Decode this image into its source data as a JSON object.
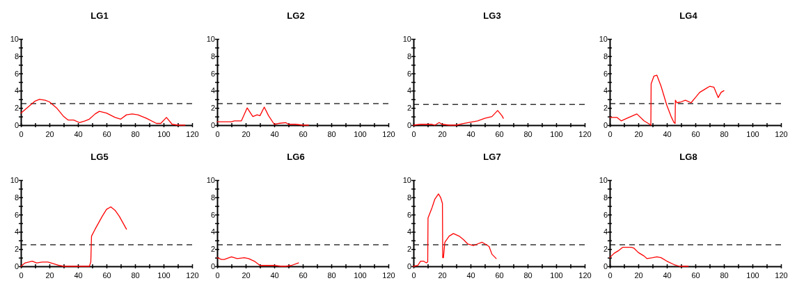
{
  "chart_data": [
    {
      "type": "line",
      "title": "LG1",
      "x": [
        0,
        5,
        10,
        13,
        17,
        20,
        25,
        30,
        33,
        37,
        41,
        45,
        48,
        52,
        55,
        60,
        66,
        70,
        74,
        78,
        82,
        88,
        95,
        98,
        102,
        106,
        110,
        115
      ],
      "series": [
        {
          "color": "#ff0000",
          "values": [
            1.4,
            2.1,
            2.8,
            3.0,
            2.9,
            2.7,
            2.0,
            1.0,
            0.6,
            0.6,
            0.3,
            0.5,
            0.7,
            1.3,
            1.6,
            1.4,
            0.9,
            0.7,
            1.2,
            1.3,
            1.2,
            0.8,
            0.2,
            0.2,
            0.9,
            0.1,
            0,
            0
          ]
        }
      ],
      "xlim": [
        0,
        120
      ],
      "ylim": [
        0,
        10
      ],
      "xticks": [
        0,
        {
          "value": 10,
          "label": null
        },
        20,
        {
          "value": 30,
          "label": null
        },
        40,
        {
          "value": 50,
          "label": null
        },
        60,
        {
          "value": 70,
          "label": null
        },
        80,
        {
          "value": 90,
          "label": null
        },
        100,
        {
          "value": 110,
          "label": null
        },
        120
      ],
      "yticks": [
        0,
        {
          "value": 1,
          "label": null
        },
        2,
        {
          "value": 3,
          "label": null
        },
        4,
        {
          "value": 5,
          "label": null
        },
        6,
        {
          "value": 7,
          "label": null
        },
        8,
        {
          "value": 9,
          "label": null
        },
        10
      ],
      "ref_lines": [
        {
          "axis": "y",
          "value": 2.5,
          "line_style": "dashed",
          "color": "#333333"
        }
      ],
      "marker": "none",
      "line_style": "solid",
      "grid": false
    },
    {
      "type": "line",
      "title": "LG2",
      "x": [
        0,
        10,
        12,
        17,
        21,
        25,
        28,
        30,
        33,
        36,
        40,
        43,
        48,
        50,
        55,
        60,
        64
      ],
      "series": [
        {
          "color": "#ff0000",
          "values": [
            0.4,
            0.4,
            0.5,
            0.5,
            2.0,
            1.0,
            1.2,
            1.1,
            2.1,
            1.1,
            0.1,
            0.2,
            0.3,
            0.1,
            0.1,
            0,
            0
          ]
        }
      ],
      "xlim": [
        0,
        120
      ],
      "ylim": [
        0,
        10
      ],
      "xticks": [
        0,
        {
          "value": 10,
          "label": null
        },
        20,
        {
          "value": 30,
          "label": null
        },
        40,
        {
          "value": 50,
          "label": null
        },
        60,
        {
          "value": 70,
          "label": null
        },
        80,
        {
          "value": 90,
          "label": null
        },
        100,
        {
          "value": 110,
          "label": null
        },
        120
      ],
      "yticks": [
        0,
        {
          "value": 1,
          "label": null
        },
        2,
        {
          "value": 3,
          "label": null
        },
        4,
        {
          "value": 5,
          "label": null
        },
        6,
        {
          "value": 7,
          "label": null
        },
        8,
        {
          "value": 9,
          "label": null
        },
        10
      ],
      "ref_lines": [
        {
          "axis": "y",
          "value": 2.5,
          "line_style": "dashed",
          "color": "#333333"
        }
      ],
      "marker": "none",
      "line_style": "solid",
      "grid": false
    },
    {
      "type": "line",
      "title": "LG3",
      "x": [
        0,
        5,
        13,
        15,
        18,
        20,
        25,
        30,
        35,
        45,
        50,
        55,
        59,
        62,
        63
      ],
      "series": [
        {
          "color": "#ff0000",
          "values": [
            0,
            0.1,
            0.1,
            0,
            0.3,
            0.1,
            0,
            0,
            0.2,
            0.5,
            0.8,
            1.0,
            1.7,
            1.1,
            0.8
          ]
        }
      ],
      "xlim": [
        0,
        120
      ],
      "ylim": [
        0,
        10
      ],
      "xticks": [
        0,
        {
          "value": 10,
          "label": null
        },
        20,
        {
          "value": 30,
          "label": null
        },
        40,
        {
          "value": 50,
          "label": null
        },
        60,
        {
          "value": 70,
          "label": null
        },
        80,
        {
          "value": 90,
          "label": null
        },
        100,
        {
          "value": 110,
          "label": null
        },
        120
      ],
      "yticks": [
        0,
        {
          "value": 1,
          "label": null
        },
        2,
        {
          "value": 3,
          "label": null
        },
        4,
        {
          "value": 5,
          "label": null
        },
        6,
        {
          "value": 7,
          "label": null
        },
        8,
        {
          "value": 9,
          "label": null
        },
        10
      ],
      "ref_lines": [
        {
          "axis": "y",
          "value": 2.4,
          "line_style": "dashed",
          "color": "#333333"
        }
      ],
      "marker": "none",
      "line_style": "solid",
      "grid": false
    },
    {
      "type": "line",
      "title": "LG4",
      "x": [
        0,
        5,
        8,
        12,
        19,
        24,
        28,
        28.8,
        29,
        31,
        33,
        36,
        40,
        43,
        45,
        45.8,
        46,
        47,
        50,
        53,
        57,
        60,
        63,
        67,
        70,
        73,
        76,
        78,
        80
      ],
      "series": [
        {
          "color": "#ff0000",
          "values": [
            0.9,
            0.9,
            0.5,
            0.8,
            1.3,
            0.5,
            0.1,
            0,
            4.8,
            5.7,
            5.8,
            4.5,
            2.3,
            1.0,
            0.3,
            0.2,
            2.9,
            2.6,
            2.7,
            2.9,
            2.6,
            3.2,
            3.8,
            4.2,
            4.5,
            4.4,
            3.2,
            3.8,
            4.0
          ]
        }
      ],
      "xlim": [
        0,
        120
      ],
      "ylim": [
        0,
        10
      ],
      "xticks": [
        0,
        {
          "value": 10,
          "label": null
        },
        20,
        {
          "value": 30,
          "label": null
        },
        40,
        {
          "value": 50,
          "label": null
        },
        60,
        {
          "value": 70,
          "label": null
        },
        80,
        {
          "value": 90,
          "label": null
        },
        100,
        {
          "value": 110,
          "label": null
        },
        120
      ],
      "yticks": [
        0,
        {
          "value": 1,
          "label": null
        },
        2,
        {
          "value": 3,
          "label": null
        },
        4,
        {
          "value": 5,
          "label": null
        },
        6,
        {
          "value": 7,
          "label": null
        },
        8,
        {
          "value": 9,
          "label": null
        },
        10
      ],
      "ref_lines": [
        {
          "axis": "y",
          "value": 2.5,
          "line_style": "dashed",
          "color": "#333333"
        }
      ],
      "marker": "none",
      "line_style": "solid",
      "grid": false
    },
    {
      "type": "line",
      "title": "LG5",
      "x": [
        0,
        3,
        8,
        11,
        15,
        19,
        23,
        27,
        30,
        48,
        49,
        49.5,
        52,
        57,
        60,
        63,
        66,
        69,
        74
      ],
      "series": [
        {
          "color": "#ff0000",
          "values": [
            0,
            0.4,
            0.6,
            0.4,
            0.5,
            0.5,
            0.3,
            0.1,
            0,
            0,
            0.5,
            3.5,
            4.3,
            5.8,
            6.6,
            6.9,
            6.5,
            5.8,
            4.3
          ]
        }
      ],
      "xlim": [
        0,
        120
      ],
      "ylim": [
        0,
        10
      ],
      "xticks": [
        0,
        {
          "value": 10,
          "label": null
        },
        20,
        {
          "value": 30,
          "label": null
        },
        40,
        {
          "value": 50,
          "label": null
        },
        60,
        {
          "value": 70,
          "label": null
        },
        80,
        {
          "value": 90,
          "label": null
        },
        100,
        {
          "value": 110,
          "label": null
        },
        120
      ],
      "yticks": [
        0,
        {
          "value": 1,
          "label": null
        },
        2,
        {
          "value": 3,
          "label": null
        },
        4,
        {
          "value": 5,
          "label": null
        },
        6,
        {
          "value": 7,
          "label": null
        },
        8,
        {
          "value": 9,
          "label": null
        },
        10
      ],
      "ref_lines": [
        {
          "axis": "y",
          "value": 2.5,
          "line_style": "dashed",
          "color": "#333333"
        }
      ],
      "marker": "none",
      "line_style": "solid",
      "grid": false
    },
    {
      "type": "line",
      "title": "LG6",
      "x": [
        0,
        3,
        5,
        10,
        14,
        19,
        22,
        26,
        30,
        35,
        40,
        45,
        48,
        52,
        57
      ],
      "series": [
        {
          "color": "#ff0000",
          "values": [
            1.0,
            0.8,
            0.8,
            1.1,
            0.9,
            1.0,
            0.9,
            0.6,
            0.1,
            0.1,
            0.1,
            0,
            0,
            0.1,
            0.4
          ]
        }
      ],
      "xlim": [
        0,
        120
      ],
      "ylim": [
        0,
        10
      ],
      "xticks": [
        0,
        {
          "value": 10,
          "label": null
        },
        20,
        {
          "value": 30,
          "label": null
        },
        40,
        {
          "value": 50,
          "label": null
        },
        60,
        {
          "value": 70,
          "label": null
        },
        80,
        {
          "value": 90,
          "label": null
        },
        100,
        {
          "value": 110,
          "label": null
        },
        120
      ],
      "yticks": [
        0,
        {
          "value": 1,
          "label": null
        },
        2,
        {
          "value": 3,
          "label": null
        },
        4,
        {
          "value": 5,
          "label": null
        },
        6,
        {
          "value": 7,
          "label": null
        },
        8,
        {
          "value": 9,
          "label": null
        },
        10
      ],
      "ref_lines": [
        {
          "axis": "y",
          "value": 2.5,
          "line_style": "dashed",
          "color": "#333333"
        }
      ],
      "marker": "none",
      "line_style": "solid",
      "grid": false
    },
    {
      "type": "line",
      "title": "LG7",
      "x": [
        0,
        3,
        5,
        7,
        9,
        10,
        10.2,
        13,
        15,
        17.5,
        19,
        20.3,
        20.5,
        21,
        22,
        25,
        28,
        32,
        35,
        38,
        42,
        45,
        48,
        53,
        55,
        58
      ],
      "series": [
        {
          "color": "#ff0000",
          "values": [
            0,
            0.1,
            0.6,
            0.6,
            0.4,
            0.5,
            5.6,
            6.8,
            7.8,
            8.4,
            8.0,
            7.3,
            1.0,
            1.0,
            2.8,
            3.5,
            3.8,
            3.5,
            3.1,
            2.6,
            2.4,
            2.6,
            2.8,
            2.3,
            1.4,
            0.9
          ]
        }
      ],
      "xlim": [
        0,
        120
      ],
      "ylim": [
        0,
        10
      ],
      "xticks": [
        0,
        {
          "value": 10,
          "label": null
        },
        20,
        {
          "value": 30,
          "label": null
        },
        40,
        {
          "value": 50,
          "label": null
        },
        60,
        {
          "value": 70,
          "label": null
        },
        80,
        {
          "value": 90,
          "label": null
        },
        100,
        {
          "value": 110,
          "label": null
        },
        120
      ],
      "yticks": [
        0,
        {
          "value": 1,
          "label": null
        },
        2,
        {
          "value": 3,
          "label": null
        },
        4,
        {
          "value": 5,
          "label": null
        },
        6,
        {
          "value": 7,
          "label": null
        },
        8,
        {
          "value": 9,
          "label": null
        },
        10
      ],
      "ref_lines": [
        {
          "axis": "y",
          "value": 2.5,
          "line_style": "dashed",
          "color": "#333333"
        }
      ],
      "marker": "none",
      "line_style": "solid",
      "grid": false
    },
    {
      "type": "line",
      "title": "LG8",
      "x": [
        0,
        3,
        6,
        9,
        15,
        17,
        20,
        24,
        26,
        30,
        33,
        36,
        40,
        45,
        49,
        55
      ],
      "series": [
        {
          "color": "#ff0000",
          "values": [
            1.0,
            1.5,
            1.8,
            2.2,
            2.2,
            2.1,
            1.6,
            1.2,
            0.9,
            1.0,
            1.1,
            1.0,
            0.6,
            0.2,
            0,
            0
          ]
        }
      ],
      "xlim": [
        0,
        120
      ],
      "ylim": [
        0,
        10
      ],
      "xticks": [
        0,
        {
          "value": 10,
          "label": null
        },
        20,
        {
          "value": 30,
          "label": null
        },
        40,
        {
          "value": 50,
          "label": null
        },
        60,
        {
          "value": 70,
          "label": null
        },
        80,
        {
          "value": 90,
          "label": null
        },
        100,
        {
          "value": 110,
          "label": null
        },
        120
      ],
      "yticks": [
        0,
        {
          "value": 1,
          "label": null
        },
        2,
        {
          "value": 3,
          "label": null
        },
        4,
        {
          "value": 5,
          "label": null
        },
        6,
        {
          "value": 7,
          "label": null
        },
        8,
        {
          "value": 9,
          "label": null
        },
        10
      ],
      "ref_lines": [
        {
          "axis": "y",
          "value": 2.5,
          "line_style": "dashed",
          "color": "#333333"
        }
      ],
      "marker": "none",
      "line_style": "solid",
      "grid": false
    }
  ]
}
